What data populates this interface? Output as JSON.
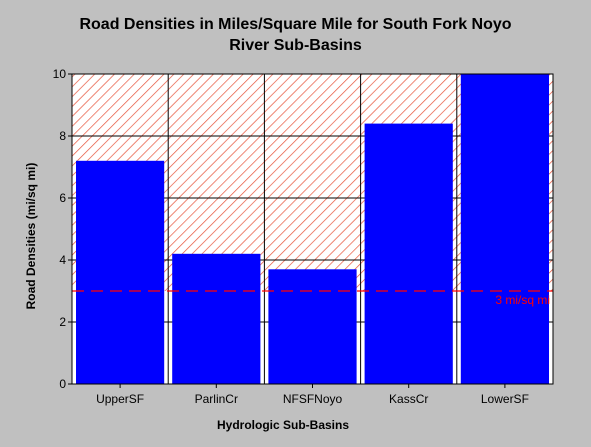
{
  "chart_data": {
    "type": "bar",
    "title_line1": "Road Densities in Miles/Square Mile for South Fork Noyo",
    "title_line2": "River Sub-Basins",
    "xlabel": "Hydrologic Sub-Basins",
    "ylabel": "Road Densities (mi/sq mi)",
    "categories": [
      "UpperSF",
      "ParlinCr",
      "NFSFNoyo",
      "KassCr",
      "LowerSF"
    ],
    "values": [
      7.2,
      4.2,
      3.7,
      8.4,
      10.0
    ],
    "ylim": [
      0,
      10
    ],
    "yticks": [
      0,
      2,
      4,
      6,
      8,
      10
    ],
    "grid": true,
    "bar_color": "#0000ff",
    "threshold": {
      "value": 3,
      "label": "3 mi/sq mi",
      "color": "#ff0000",
      "hatch_above": true
    }
  }
}
